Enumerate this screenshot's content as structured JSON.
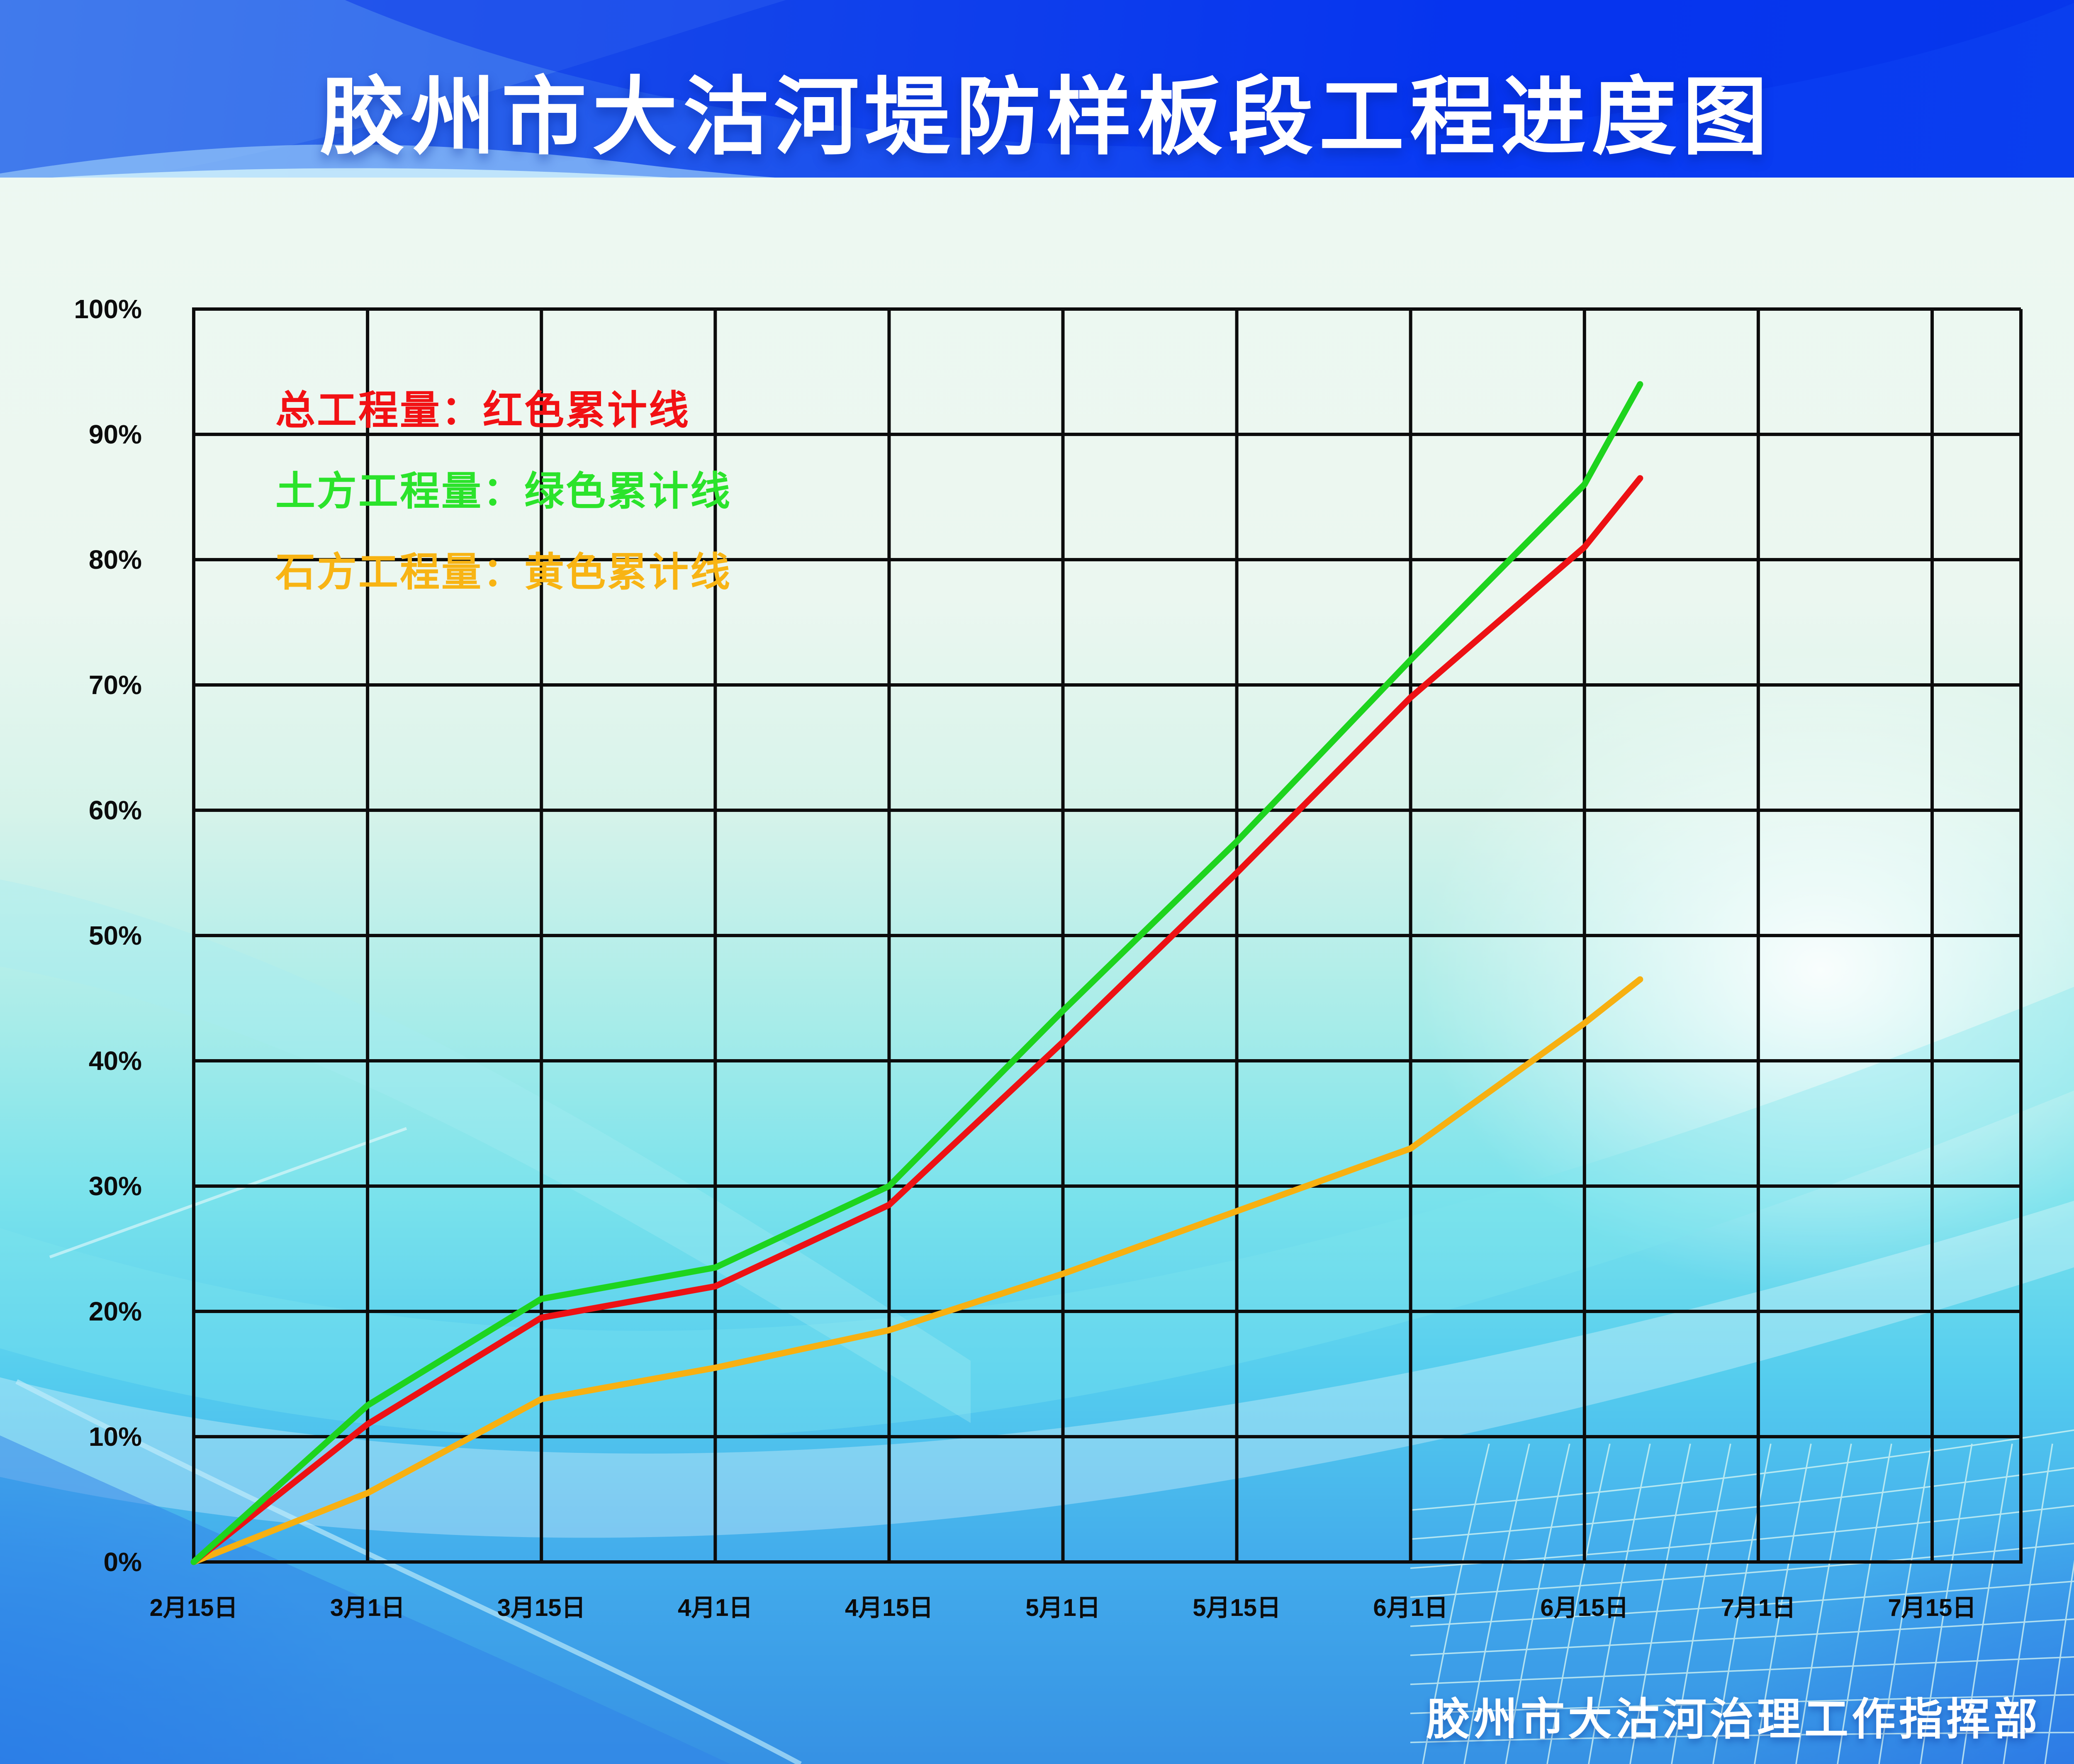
{
  "banner": {
    "title": "胶州市大沽河堤防样板段工程进度图",
    "background_colors": [
      "#2f6ce6",
      "#0a3cf2"
    ]
  },
  "legend": {
    "items": [
      {
        "label": "总工程量：红色累计线",
        "color": "#f21114"
      },
      {
        "label": "土方工程量：绿色累计线",
        "color": "#2be32b"
      },
      {
        "label": "石方工程量：黄色累计线",
        "color": "#f8b414"
      }
    ]
  },
  "footer": {
    "credit": "胶州市大沽河治理工作指挥部"
  },
  "chart_data": {
    "type": "line",
    "title": "胶州市大沽河堤防样板段工程进度图",
    "xlabel": "",
    "ylabel": "",
    "ylim": [
      0,
      100
    ],
    "grid": true,
    "legend_position": "top-left",
    "x_tick_labels": [
      "2月15日",
      "3月1日",
      "3月15日",
      "4月1日",
      "4月15日",
      "5月1日",
      "5月15日",
      "6月1日",
      "6月15日",
      "7月1日",
      "7月15日"
    ],
    "y_tick_labels": [
      "0%",
      "10%",
      "20%",
      "30%",
      "40%",
      "50%",
      "60%",
      "70%",
      "80%",
      "90%",
      "100%"
    ],
    "series": [
      {
        "name": "总工程量（红色累计线）",
        "color": "#ed1114",
        "points": [
          [
            0,
            0
          ],
          [
            1,
            11
          ],
          [
            2,
            19.5
          ],
          [
            3,
            22
          ],
          [
            4,
            28.5
          ],
          [
            5,
            41.5
          ],
          [
            6,
            55
          ],
          [
            7,
            69
          ],
          [
            8,
            81
          ],
          [
            8.32,
            86.5
          ]
        ]
      },
      {
        "name": "土方工程量（绿色累计线）",
        "color": "#1ed41e",
        "points": [
          [
            0,
            0
          ],
          [
            1,
            12.5
          ],
          [
            2,
            21
          ],
          [
            3,
            23.5
          ],
          [
            4,
            30
          ],
          [
            5,
            44
          ],
          [
            6,
            57.5
          ],
          [
            7,
            72
          ],
          [
            8,
            86
          ],
          [
            8.32,
            94
          ]
        ]
      },
      {
        "name": "石方工程量（黄色累计线）",
        "color": "#f7b011",
        "points": [
          [
            0,
            0
          ],
          [
            1,
            5.5
          ],
          [
            2,
            13
          ],
          [
            3,
            15.5
          ],
          [
            4,
            18.5
          ],
          [
            5,
            23
          ],
          [
            6,
            28
          ],
          [
            7,
            33
          ],
          [
            8,
            43
          ],
          [
            8.32,
            46.5
          ]
        ]
      }
    ]
  }
}
